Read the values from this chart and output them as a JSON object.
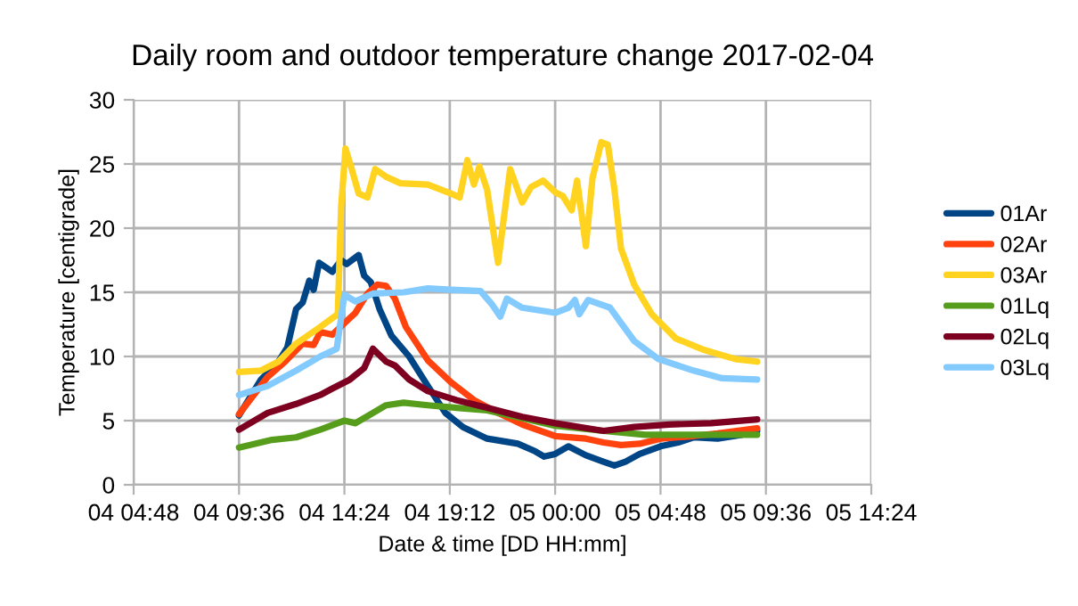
{
  "chart_data": {
    "type": "line",
    "title": "Daily room and outdoor temperature change 2017-02-04",
    "xlabel": "Date & time [DD HH:mm]",
    "ylabel": "Temperature [centigrade]",
    "xlim": [
      "2017-02-04T04:48",
      "2017-02-05T14:24"
    ],
    "xticks": [
      {
        "value": "2017-02-04T04:48",
        "label": "04 04:48"
      },
      {
        "value": "2017-02-04T09:36",
        "label": "04 09:36"
      },
      {
        "value": "2017-02-04T14:24",
        "label": "04 14:24"
      },
      {
        "value": "2017-02-04T19:12",
        "label": "04 19:12"
      },
      {
        "value": "2017-02-05T00:00",
        "label": "05 00:00"
      },
      {
        "value": "2017-02-05T04:48",
        "label": "05 04:48"
      },
      {
        "value": "2017-02-05T09:36",
        "label": "05 09:36"
      },
      {
        "value": "2017-02-05T14:24",
        "label": "05 14:24"
      }
    ],
    "ylim": [
      0,
      30
    ],
    "yticks": [
      0,
      5,
      10,
      15,
      20,
      25,
      30
    ],
    "grid": true,
    "legend": "right",
    "line_style": "solid",
    "series": [
      {
        "name": "01Ar",
        "color": "#004586",
        "x": [
          "2017-02-04T09:36",
          "2017-02-04T10:36",
          "2017-02-04T11:24",
          "2017-02-04T11:48",
          "2017-02-04T12:12",
          "2017-02-04T12:30",
          "2017-02-04T12:48",
          "2017-02-04T13:00",
          "2017-02-04T13:15",
          "2017-02-04T13:51",
          "2017-02-04T14:15",
          "2017-02-04T14:30",
          "2017-02-04T15:03",
          "2017-02-04T15:18",
          "2017-02-04T15:36",
          "2017-02-04T16:00",
          "2017-02-04T16:33",
          "2017-02-04T17:21",
          "2017-02-04T18:12",
          "2017-02-04T19:00",
          "2017-02-04T19:48",
          "2017-02-04T20:54",
          "2017-02-04T22:18",
          "2017-02-04T23:06",
          "2017-02-04T23:30",
          "2017-02-05T00:00",
          "2017-02-05T00:36",
          "2017-02-05T01:24",
          "2017-02-05T02:12",
          "2017-02-05T02:42",
          "2017-02-05T03:12",
          "2017-02-05T03:51",
          "2017-02-05T04:48",
          "2017-02-05T05:36",
          "2017-02-05T06:18",
          "2017-02-05T07:24",
          "2017-02-05T08:30",
          "2017-02-05T09:12"
        ],
        "values": [
          5.4,
          8.2,
          9.6,
          10.7,
          13.7,
          14.2,
          15.9,
          15.2,
          17.3,
          16.6,
          17.5,
          17.2,
          17.9,
          16.3,
          15.8,
          13.7,
          11.6,
          10.0,
          7.7,
          5.6,
          4.5,
          3.6,
          3.2,
          2.6,
          2.2,
          2.4,
          3.0,
          2.3,
          1.8,
          1.5,
          1.8,
          2.4,
          3.0,
          3.3,
          3.7,
          3.6,
          3.9,
          4.2
        ]
      },
      {
        "name": "02Ar",
        "color": "#ff420e",
        "x": [
          "2017-02-04T09:36",
          "2017-02-04T10:54",
          "2017-02-04T11:42",
          "2017-02-04T12:30",
          "2017-02-04T13:00",
          "2017-02-04T13:18",
          "2017-02-04T13:51",
          "2017-02-04T14:24",
          "2017-02-04T14:54",
          "2017-02-04T15:27",
          "2017-02-04T15:54",
          "2017-02-04T16:18",
          "2017-02-04T16:42",
          "2017-02-04T17:12",
          "2017-02-04T18:12",
          "2017-02-04T19:15",
          "2017-02-04T20:18",
          "2017-02-04T21:24",
          "2017-02-04T22:30",
          "2017-02-05T00:00",
          "2017-02-05T01:24",
          "2017-02-05T02:12",
          "2017-02-05T03:00",
          "2017-02-05T03:51",
          "2017-02-05T04:48",
          "2017-02-05T06:18",
          "2017-02-05T07:24",
          "2017-02-05T09:12"
        ],
        "values": [
          5.5,
          8.4,
          9.6,
          11.0,
          10.9,
          11.9,
          11.7,
          12.6,
          13.4,
          14.9,
          15.6,
          15.5,
          14.5,
          12.3,
          9.7,
          8.0,
          6.6,
          5.6,
          4.7,
          3.8,
          3.6,
          3.3,
          3.1,
          3.2,
          3.6,
          3.8,
          4.0,
          4.4
        ]
      },
      {
        "name": "03Ar",
        "color": "#ffd320",
        "x": [
          "2017-02-04T09:36",
          "2017-02-04T10:36",
          "2017-02-04T11:24",
          "2017-02-04T12:12",
          "2017-02-04T13:18",
          "2017-02-04T14:06",
          "2017-02-04T14:15",
          "2017-02-04T14:27",
          "2017-02-04T14:42",
          "2017-02-04T15:03",
          "2017-02-04T15:27",
          "2017-02-04T15:48",
          "2017-02-04T16:18",
          "2017-02-04T16:57",
          "2017-02-04T18:12",
          "2017-02-04T19:15",
          "2017-02-04T19:39",
          "2017-02-04T20:00",
          "2017-02-04T20:18",
          "2017-02-04T20:33",
          "2017-02-04T20:54",
          "2017-02-04T21:24",
          "2017-02-04T21:57",
          "2017-02-04T22:30",
          "2017-02-04T22:54",
          "2017-02-04T23:27",
          "2017-02-05T00:00",
          "2017-02-05T00:21",
          "2017-02-05T00:45",
          "2017-02-05T01:00",
          "2017-02-05T01:24",
          "2017-02-05T01:42",
          "2017-02-05T02:06",
          "2017-02-05T02:24",
          "2017-02-05T02:42",
          "2017-02-05T03:00",
          "2017-02-05T03:36",
          "2017-02-05T04:24",
          "2017-02-05T05:30",
          "2017-02-05T06:48",
          "2017-02-05T08:12",
          "2017-02-05T09:12"
        ],
        "values": [
          8.8,
          8.9,
          9.6,
          11.0,
          12.3,
          13.3,
          21.6,
          26.2,
          24.8,
          22.7,
          22.4,
          24.6,
          24.0,
          23.5,
          23.4,
          22.7,
          22.4,
          25.3,
          23.4,
          24.8,
          23.0,
          17.3,
          24.6,
          22.0,
          23.2,
          23.7,
          22.8,
          22.5,
          21.4,
          23.7,
          18.6,
          23.9,
          26.7,
          26.5,
          23.0,
          18.4,
          15.6,
          13.3,
          11.4,
          10.5,
          9.8,
          9.6
        ]
      },
      {
        "name": "01Lq",
        "color": "#579d1c",
        "x": [
          "2017-02-04T09:36",
          "2017-02-04T11:06",
          "2017-02-04T12:12",
          "2017-02-04T13:18",
          "2017-02-04T14:24",
          "2017-02-04T14:54",
          "2017-02-04T15:42",
          "2017-02-04T16:18",
          "2017-02-04T17:06",
          "2017-02-04T18:12",
          "2017-02-04T19:30",
          "2017-02-04T20:54",
          "2017-02-04T22:30",
          "2017-02-05T00:00",
          "2017-02-05T02:12",
          "2017-02-05T04:06",
          "2017-02-05T06:18",
          "2017-02-05T09:12"
        ],
        "values": [
          2.9,
          3.5,
          3.7,
          4.3,
          5.0,
          4.8,
          5.6,
          6.2,
          6.4,
          6.2,
          6.0,
          5.8,
          5.2,
          4.6,
          4.2,
          3.9,
          3.9,
          3.9
        ]
      },
      {
        "name": "02Lq",
        "color": "#7e0021",
        "x": [
          "2017-02-04T09:36",
          "2017-02-04T10:54",
          "2017-02-04T12:12",
          "2017-02-04T13:18",
          "2017-02-04T13:51",
          "2017-02-04T14:39",
          "2017-02-04T15:18",
          "2017-02-04T15:42",
          "2017-02-04T16:18",
          "2017-02-04T16:42",
          "2017-02-04T17:21",
          "2017-02-04T18:12",
          "2017-02-04T19:30",
          "2017-02-04T20:54",
          "2017-02-04T22:30",
          "2017-02-05T00:00",
          "2017-02-05T02:12",
          "2017-02-05T03:36",
          "2017-02-05T05:12",
          "2017-02-05T07:06",
          "2017-02-05T09:12"
        ],
        "values": [
          4.3,
          5.6,
          6.3,
          7.0,
          7.5,
          8.2,
          9.1,
          10.6,
          9.6,
          9.3,
          8.2,
          7.3,
          6.6,
          6.0,
          5.3,
          4.8,
          4.2,
          4.5,
          4.7,
          4.8,
          5.1
        ]
      },
      {
        "name": "03Lq",
        "color": "#83caff",
        "x": [
          "2017-02-04T09:36",
          "2017-02-04T10:54",
          "2017-02-04T12:12",
          "2017-02-04T13:18",
          "2017-02-04T14:03",
          "2017-02-04T14:24",
          "2017-02-04T14:54",
          "2017-02-04T15:42",
          "2017-02-04T17:06",
          "2017-02-04T18:12",
          "2017-02-04T19:15",
          "2017-02-04T20:36",
          "2017-02-04T21:09",
          "2017-02-04T21:30",
          "2017-02-04T21:48",
          "2017-02-04T22:30",
          "2017-02-05T00:00",
          "2017-02-05T00:36",
          "2017-02-05T00:54",
          "2017-02-05T01:06",
          "2017-02-05T01:30",
          "2017-02-05T02:30",
          "2017-02-05T03:36",
          "2017-02-05T04:42",
          "2017-02-05T06:18",
          "2017-02-05T07:36",
          "2017-02-05T09:12"
        ],
        "values": [
          7.0,
          7.7,
          8.9,
          10.0,
          10.6,
          14.8,
          14.3,
          14.9,
          15.0,
          15.3,
          15.2,
          15.1,
          14.0,
          13.1,
          14.5,
          13.8,
          13.4,
          13.8,
          14.4,
          13.3,
          14.4,
          13.8,
          11.2,
          9.8,
          8.9,
          8.3,
          8.2
        ]
      }
    ]
  }
}
